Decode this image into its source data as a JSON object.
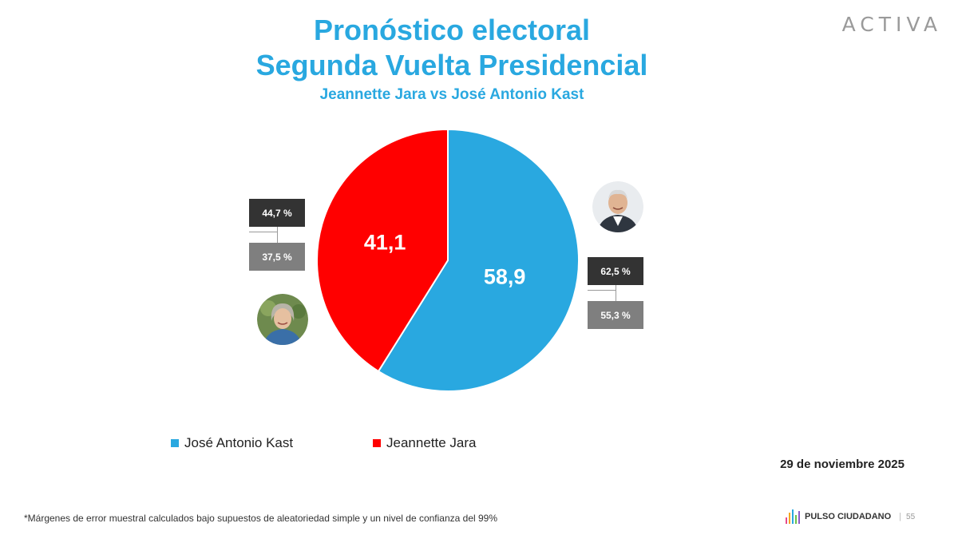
{
  "header": {
    "title_line1": "Pronóstico electoral",
    "title_line2": "Segunda Vuelta Presidencial",
    "subtitle": "Jeannette Jara vs José Antonio Kast",
    "logo_text": "ACTIVA"
  },
  "chart_data": {
    "type": "pie",
    "title": "Pronóstico electoral Segunda Vuelta Presidencial",
    "subtitle": "Jeannette Jara vs José Antonio Kast",
    "slices": [
      {
        "name": "José Antonio Kast",
        "value": 58.9,
        "label": "58,9",
        "color": "#29a8e0",
        "range_high": "62,5 %",
        "range_low": "55,3 %"
      },
      {
        "name": "Jeannette Jara",
        "value": 41.1,
        "label": "41,1",
        "color": "#ff0000",
        "range_high": "44,7 %",
        "range_low": "37,5 %"
      }
    ],
    "start_angle_deg": 0,
    "direction": "clockwise",
    "legend": {
      "position": "bottom-left",
      "entries": [
        "José Antonio Kast",
        "Jeannette Jara"
      ]
    }
  },
  "avatars": {
    "kast": "kast-avatar",
    "jara": "jara-avatar"
  },
  "date": "29 de noviembre 2025",
  "footnote": "*Márgenes de error muestral calculados bajo supuestos de aleatoriedad simple y un nivel de confianza del 99%",
  "brand": {
    "name": "PULSO CIUDADANO",
    "page_number": "55"
  }
}
